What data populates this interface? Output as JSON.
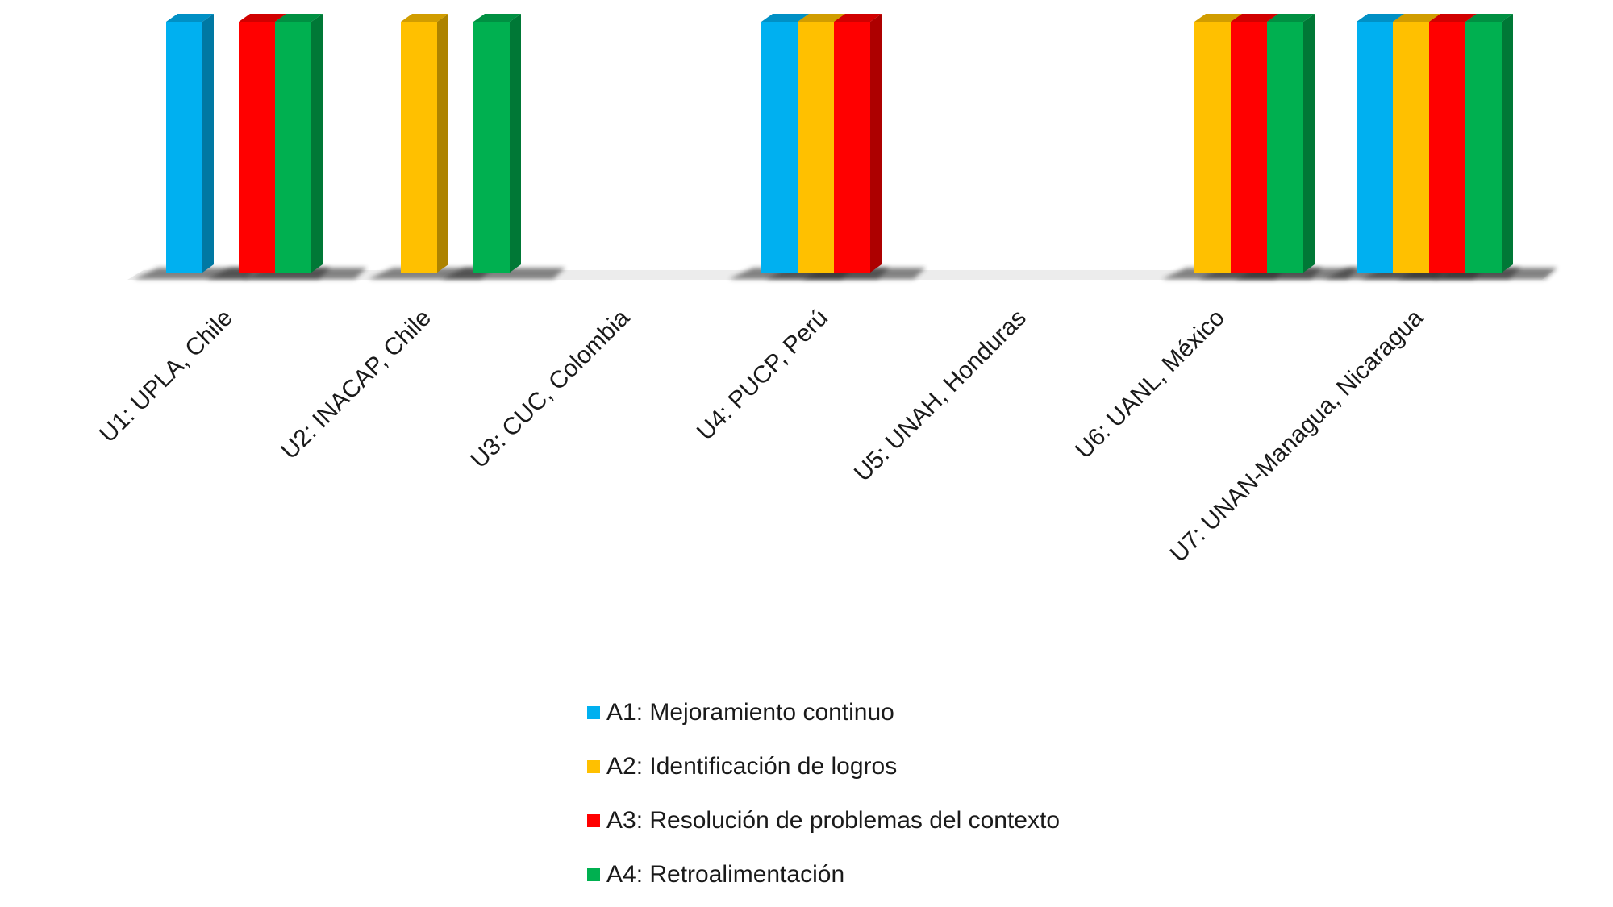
{
  "chart_data": {
    "type": "bar",
    "categories": [
      "U1: UPLA, Chile",
      "U2: INACAP, Chile",
      "U3: CUC, Colombia",
      "U4: PUCP, Perú",
      "U5: UNAH, Honduras",
      "U6: UANL, México",
      "U7: UNAN-Managua, Nicaragua"
    ],
    "series": [
      {
        "name": "A1: Mejoramiento continuo",
        "color": "#00B0F0",
        "values": [
          1,
          0,
          0,
          1,
          0,
          0,
          1
        ]
      },
      {
        "name": "A2: Identificación de logros",
        "color": "#FFC000",
        "values": [
          0,
          1,
          0,
          1,
          0,
          1,
          1
        ]
      },
      {
        "name": "A3: Resolución de problemas del contexto",
        "color": "#FF0000",
        "values": [
          1,
          0,
          0,
          1,
          0,
          1,
          1
        ]
      },
      {
        "name": "A4: Retroalimentación",
        "color": "#00B050",
        "values": [
          1,
          1,
          0,
          0,
          0,
          1,
          1
        ]
      }
    ],
    "ylim": [
      0,
      1
    ],
    "grid": false,
    "legend_position": "bottom"
  }
}
